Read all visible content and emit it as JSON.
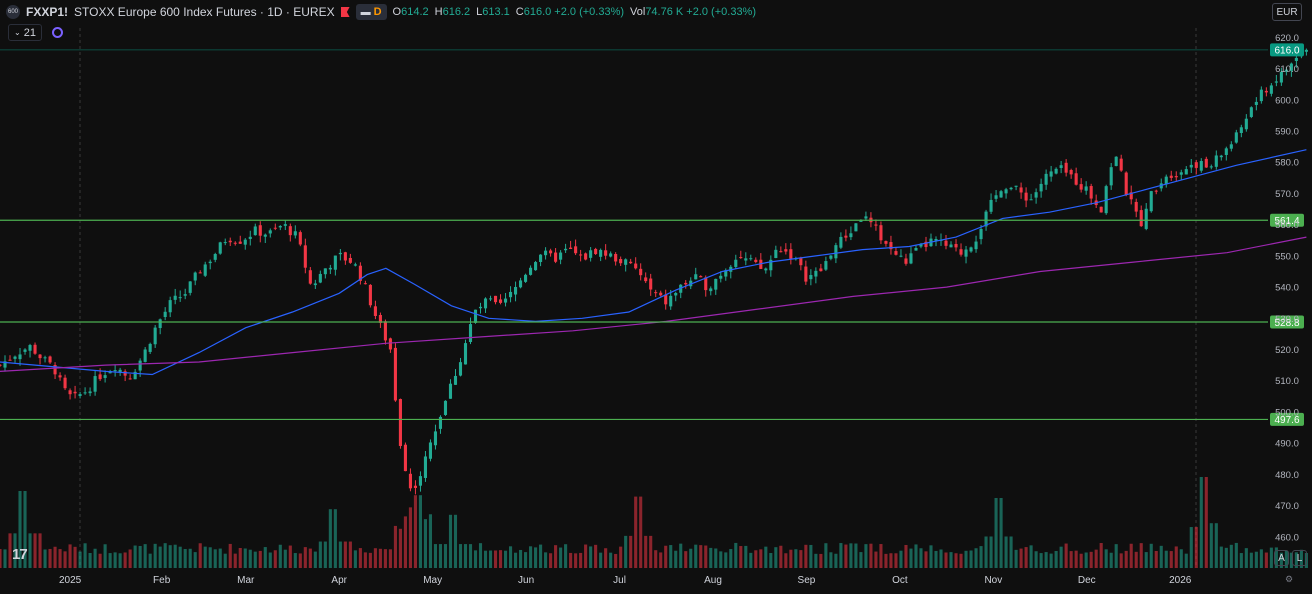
{
  "header": {
    "symbol": "FXXP1!",
    "title": "STOXX Europe 600 Index Futures · 1D · EUREX",
    "badge": "D",
    "ohlc": {
      "o_label": "O",
      "o": "614.2",
      "h_label": "H",
      "h": "616.2",
      "l_label": "L",
      "l": "613.1",
      "c_label": "C",
      "c": "616.0 +2.0 (+0.33%)"
    },
    "vol_label": "Vol",
    "vol": "74.76 K +2.0 (+0.33%)",
    "indicator_count": "21",
    "currency": "EUR"
  },
  "tools": {
    "logo": "17",
    "auto_btn": "A",
    "log_btn": "L"
  },
  "chart_data": {
    "type": "candlestick",
    "ylim": [
      450,
      623
    ],
    "y_ticks": [
      460,
      470,
      480,
      490,
      500,
      510,
      520,
      530,
      540,
      550,
      560,
      570,
      580,
      590,
      600,
      610,
      620
    ],
    "x_ticks": [
      {
        "label": "2025",
        "x": 0.02
      },
      {
        "label": "Feb",
        "x": 1.0
      },
      {
        "label": "Mar",
        "x": 1.9
      },
      {
        "label": "Apr",
        "x": 2.9
      },
      {
        "label": "May",
        "x": 3.9
      },
      {
        "label": "Jun",
        "x": 4.9
      },
      {
        "label": "Jul",
        "x": 5.9
      },
      {
        "label": "Aug",
        "x": 6.9
      },
      {
        "label": "Sep",
        "x": 7.9
      },
      {
        "label": "Oct",
        "x": 8.9
      },
      {
        "label": "Nov",
        "x": 9.9
      },
      {
        "label": "Dec",
        "x": 10.9
      },
      {
        "label": "2026",
        "x": 11.9
      }
    ],
    "x_range": [
      -0.73,
      12.7
    ],
    "horizontal_levels": [
      {
        "label": "616.0",
        "value": 616.0,
        "color": "#089981"
      },
      {
        "label": "561.4",
        "value": 561.4,
        "color": "#4caf50"
      },
      {
        "label": "528.8",
        "value": 528.8,
        "color": "#4caf50"
      },
      {
        "label": "497.6",
        "value": 497.6,
        "color": "#4caf50"
      }
    ],
    "close_path": [
      [
        -0.73,
        515
      ],
      [
        -0.55,
        519
      ],
      [
        -0.4,
        521
      ],
      [
        -0.28,
        517
      ],
      [
        -0.15,
        514
      ],
      [
        -0.05,
        507
      ],
      [
        0.05,
        504
      ],
      [
        0.2,
        507
      ],
      [
        0.35,
        512
      ],
      [
        0.5,
        515
      ],
      [
        0.65,
        511
      ],
      [
        0.8,
        518
      ],
      [
        0.95,
        528
      ],
      [
        1.1,
        535
      ],
      [
        1.25,
        538
      ],
      [
        1.4,
        545
      ],
      [
        1.55,
        550
      ],
      [
        1.7,
        556
      ],
      [
        1.85,
        555
      ],
      [
        2.0,
        558
      ],
      [
        2.15,
        557
      ],
      [
        2.3,
        560
      ],
      [
        2.45,
        556
      ],
      [
        2.6,
        540
      ],
      [
        2.75,
        546
      ],
      [
        2.9,
        550
      ],
      [
        3.05,
        548
      ],
      [
        3.15,
        542
      ],
      [
        3.3,
        530
      ],
      [
        3.45,
        520
      ],
      [
        3.55,
        490
      ],
      [
        3.65,
        475
      ],
      [
        3.75,
        478
      ],
      [
        3.9,
        492
      ],
      [
        4.05,
        505
      ],
      [
        4.2,
        517
      ],
      [
        4.35,
        532
      ],
      [
        4.5,
        536
      ],
      [
        4.6,
        533
      ],
      [
        4.75,
        538
      ],
      [
        4.9,
        545
      ],
      [
        5.05,
        551
      ],
      [
        5.2,
        549
      ],
      [
        5.35,
        552
      ],
      [
        5.5,
        549
      ],
      [
        5.65,
        552
      ],
      [
        5.8,
        550
      ],
      [
        5.95,
        548
      ],
      [
        6.1,
        545
      ],
      [
        6.25,
        538
      ],
      [
        6.4,
        535
      ],
      [
        6.55,
        540
      ],
      [
        6.7,
        543
      ],
      [
        6.85,
        540
      ],
      [
        7.0,
        545
      ],
      [
        7.15,
        550
      ],
      [
        7.3,
        548
      ],
      [
        7.45,
        545
      ],
      [
        7.6,
        553
      ],
      [
        7.75,
        550
      ],
      [
        7.9,
        543
      ],
      [
        8.05,
        545
      ],
      [
        8.2,
        553
      ],
      [
        8.35,
        557
      ],
      [
        8.5,
        563
      ],
      [
        8.65,
        558
      ],
      [
        8.8,
        552
      ],
      [
        8.95,
        548
      ],
      [
        9.1,
        552
      ],
      [
        9.25,
        555
      ],
      [
        9.4,
        553
      ],
      [
        9.55,
        551
      ],
      [
        9.7,
        555
      ],
      [
        9.85,
        565
      ],
      [
        10.0,
        573
      ],
      [
        10.15,
        571
      ],
      [
        10.3,
        568
      ],
      [
        10.45,
        575
      ],
      [
        10.6,
        578
      ],
      [
        10.75,
        575
      ],
      [
        10.9,
        571
      ],
      [
        11.05,
        565
      ],
      [
        11.2,
        584
      ],
      [
        11.3,
        572
      ],
      [
        11.4,
        565
      ],
      [
        11.5,
        560
      ],
      [
        11.6,
        571
      ],
      [
        11.75,
        576
      ],
      [
        11.9,
        577
      ],
      [
        12.05,
        580
      ],
      [
        12.2,
        578
      ],
      [
        12.35,
        583
      ],
      [
        12.5,
        588
      ],
      [
        12.65,
        597
      ],
      [
        12.8,
        603
      ],
      [
        12.95,
        607
      ],
      [
        13.1,
        612
      ],
      [
        13.25,
        616.0
      ]
    ],
    "ma_fast": [
      [
        -0.73,
        516
      ],
      [
        0.4,
        513
      ],
      [
        0.9,
        512
      ],
      [
        1.4,
        519
      ],
      [
        1.9,
        527
      ],
      [
        2.4,
        532
      ],
      [
        2.9,
        538
      ],
      [
        3.2,
        544
      ],
      [
        3.4,
        546
      ],
      [
        3.7,
        541
      ],
      [
        4.1,
        534
      ],
      [
        4.5,
        530
      ],
      [
        5.0,
        529
      ],
      [
        5.5,
        530
      ],
      [
        6.0,
        532
      ],
      [
        6.5,
        539
      ],
      [
        7.0,
        545
      ],
      [
        7.5,
        548
      ],
      [
        8.0,
        550
      ],
      [
        8.5,
        552
      ],
      [
        9.0,
        553
      ],
      [
        9.5,
        556
      ],
      [
        10.0,
        562
      ],
      [
        10.5,
        564
      ],
      [
        11.0,
        567
      ],
      [
        11.5,
        571
      ],
      [
        12.0,
        575
      ],
      [
        12.5,
        579
      ],
      [
        13.25,
        584
      ]
    ],
    "ma_slow": [
      [
        -0.73,
        513
      ],
      [
        0.4,
        515
      ],
      [
        1.4,
        516
      ],
      [
        2.4,
        519
      ],
      [
        3.4,
        522
      ],
      [
        4.4,
        524
      ],
      [
        5.4,
        526
      ],
      [
        6.4,
        529
      ],
      [
        7.4,
        533
      ],
      [
        8.4,
        537
      ],
      [
        9.4,
        540
      ],
      [
        10.4,
        545
      ],
      [
        11.4,
        548
      ],
      [
        12.4,
        551
      ],
      [
        13.25,
        556
      ]
    ],
    "volume_peaks": [
      {
        "x": -0.48,
        "v": 0.55
      },
      {
        "x": 2.85,
        "v": 0.42
      },
      {
        "x": 3.75,
        "v": 0.52
      },
      {
        "x": 4.1,
        "v": 0.38
      },
      {
        "x": 6.1,
        "v": 0.51
      },
      {
        "x": 9.95,
        "v": 0.5
      },
      {
        "x": 12.15,
        "v": 0.65
      },
      {
        "x": 12.25,
        "v": 0.32
      }
    ],
    "colors": {
      "up": "#22ab94",
      "down": "#f23645",
      "ma_fast": "#2962ff",
      "ma_slow": "#9c27b0",
      "bg": "#0f0f0f",
      "grid": "#1e1e1e",
      "text": "#d1d4dc"
    }
  }
}
